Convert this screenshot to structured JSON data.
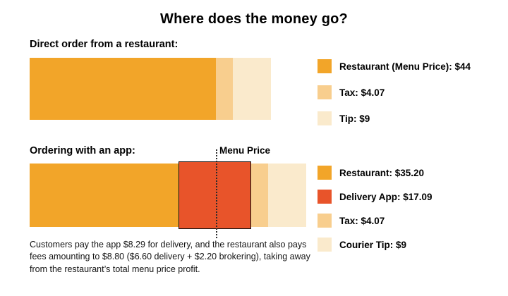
{
  "title": "Where does the money go?",
  "chart_data": [
    {
      "type": "bar",
      "orientation": "horizontal-stacked",
      "section_label": "Direct order from a restaurant:",
      "unit": "USD",
      "total": 57.07,
      "segments": [
        {
          "label": "Restaurant (Menu Price): $44",
          "value": 44,
          "color": "#F2A529"
        },
        {
          "label": "Tax: $4.07",
          "value": 4.07,
          "color": "#F8CE8E"
        },
        {
          "label": "Tip: $9",
          "value": 9,
          "color": "#FAEACC"
        }
      ],
      "legend_position": "right"
    },
    {
      "type": "bar",
      "orientation": "horizontal-stacked",
      "section_label": "Ordering with an app:",
      "unit": "USD",
      "total": 65.36,
      "annotation": "Menu Price",
      "annotation_value": 44,
      "segments": [
        {
          "label": "Restaurant: $35.20",
          "value": 35.2,
          "color": "#F2A529"
        },
        {
          "label": "Delivery App: $17.09",
          "value": 17.09,
          "color": "#E8542A",
          "highlighted": true
        },
        {
          "label": "Tax: $4.07",
          "value": 4.07,
          "color": "#F8CE8E"
        },
        {
          "label": "Courier Tip: $9",
          "value": 9,
          "color": "#FAEACC"
        }
      ],
      "legend_position": "right"
    }
  ],
  "footnote": {
    "text": "Customers pay the app $8.29 for delivery, and the restaurant also pays fees amounting to $8.80 ($6.60 delivery + $2.20 brokering), taking away from the restaurant’s total menu price profit."
  }
}
